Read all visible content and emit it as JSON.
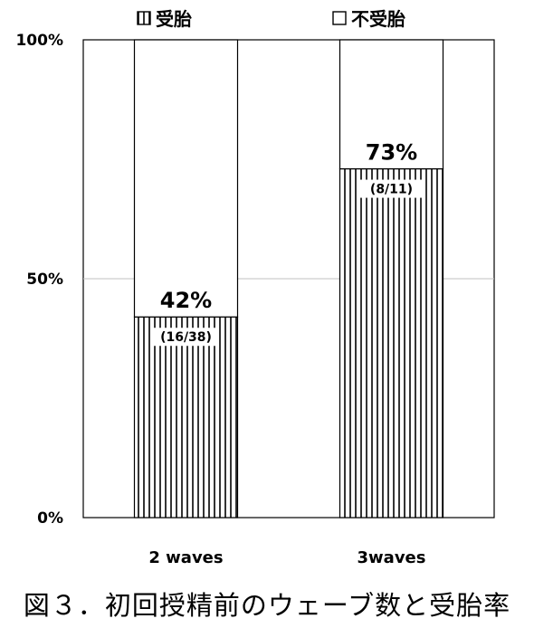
{
  "caption": "図３．初回授精前のウェーブ数と受胎率",
  "chart_data": {
    "type": "bar",
    "stacked": true,
    "categories": [
      "2 waves",
      "3waves"
    ],
    "series": [
      {
        "name": "受胎",
        "values": [
          42,
          73
        ],
        "pattern": "vertical-stripes"
      },
      {
        "name": "不受胎",
        "values": [
          58,
          27
        ],
        "pattern": "none"
      }
    ],
    "data_labels": [
      {
        "percent": "42%",
        "count": "(16/38)"
      },
      {
        "percent": "73%",
        "count": "(8/11)"
      }
    ],
    "yticks": [
      "0%",
      "50%",
      "100%"
    ],
    "ylim": [
      0,
      100
    ],
    "legend": {
      "position": "top",
      "items": [
        "受胎",
        "不受胎"
      ]
    },
    "grid": true,
    "colors": {
      "stroke": "#000000",
      "fill": "#ffffff",
      "grid": "#c0c0c0"
    }
  }
}
